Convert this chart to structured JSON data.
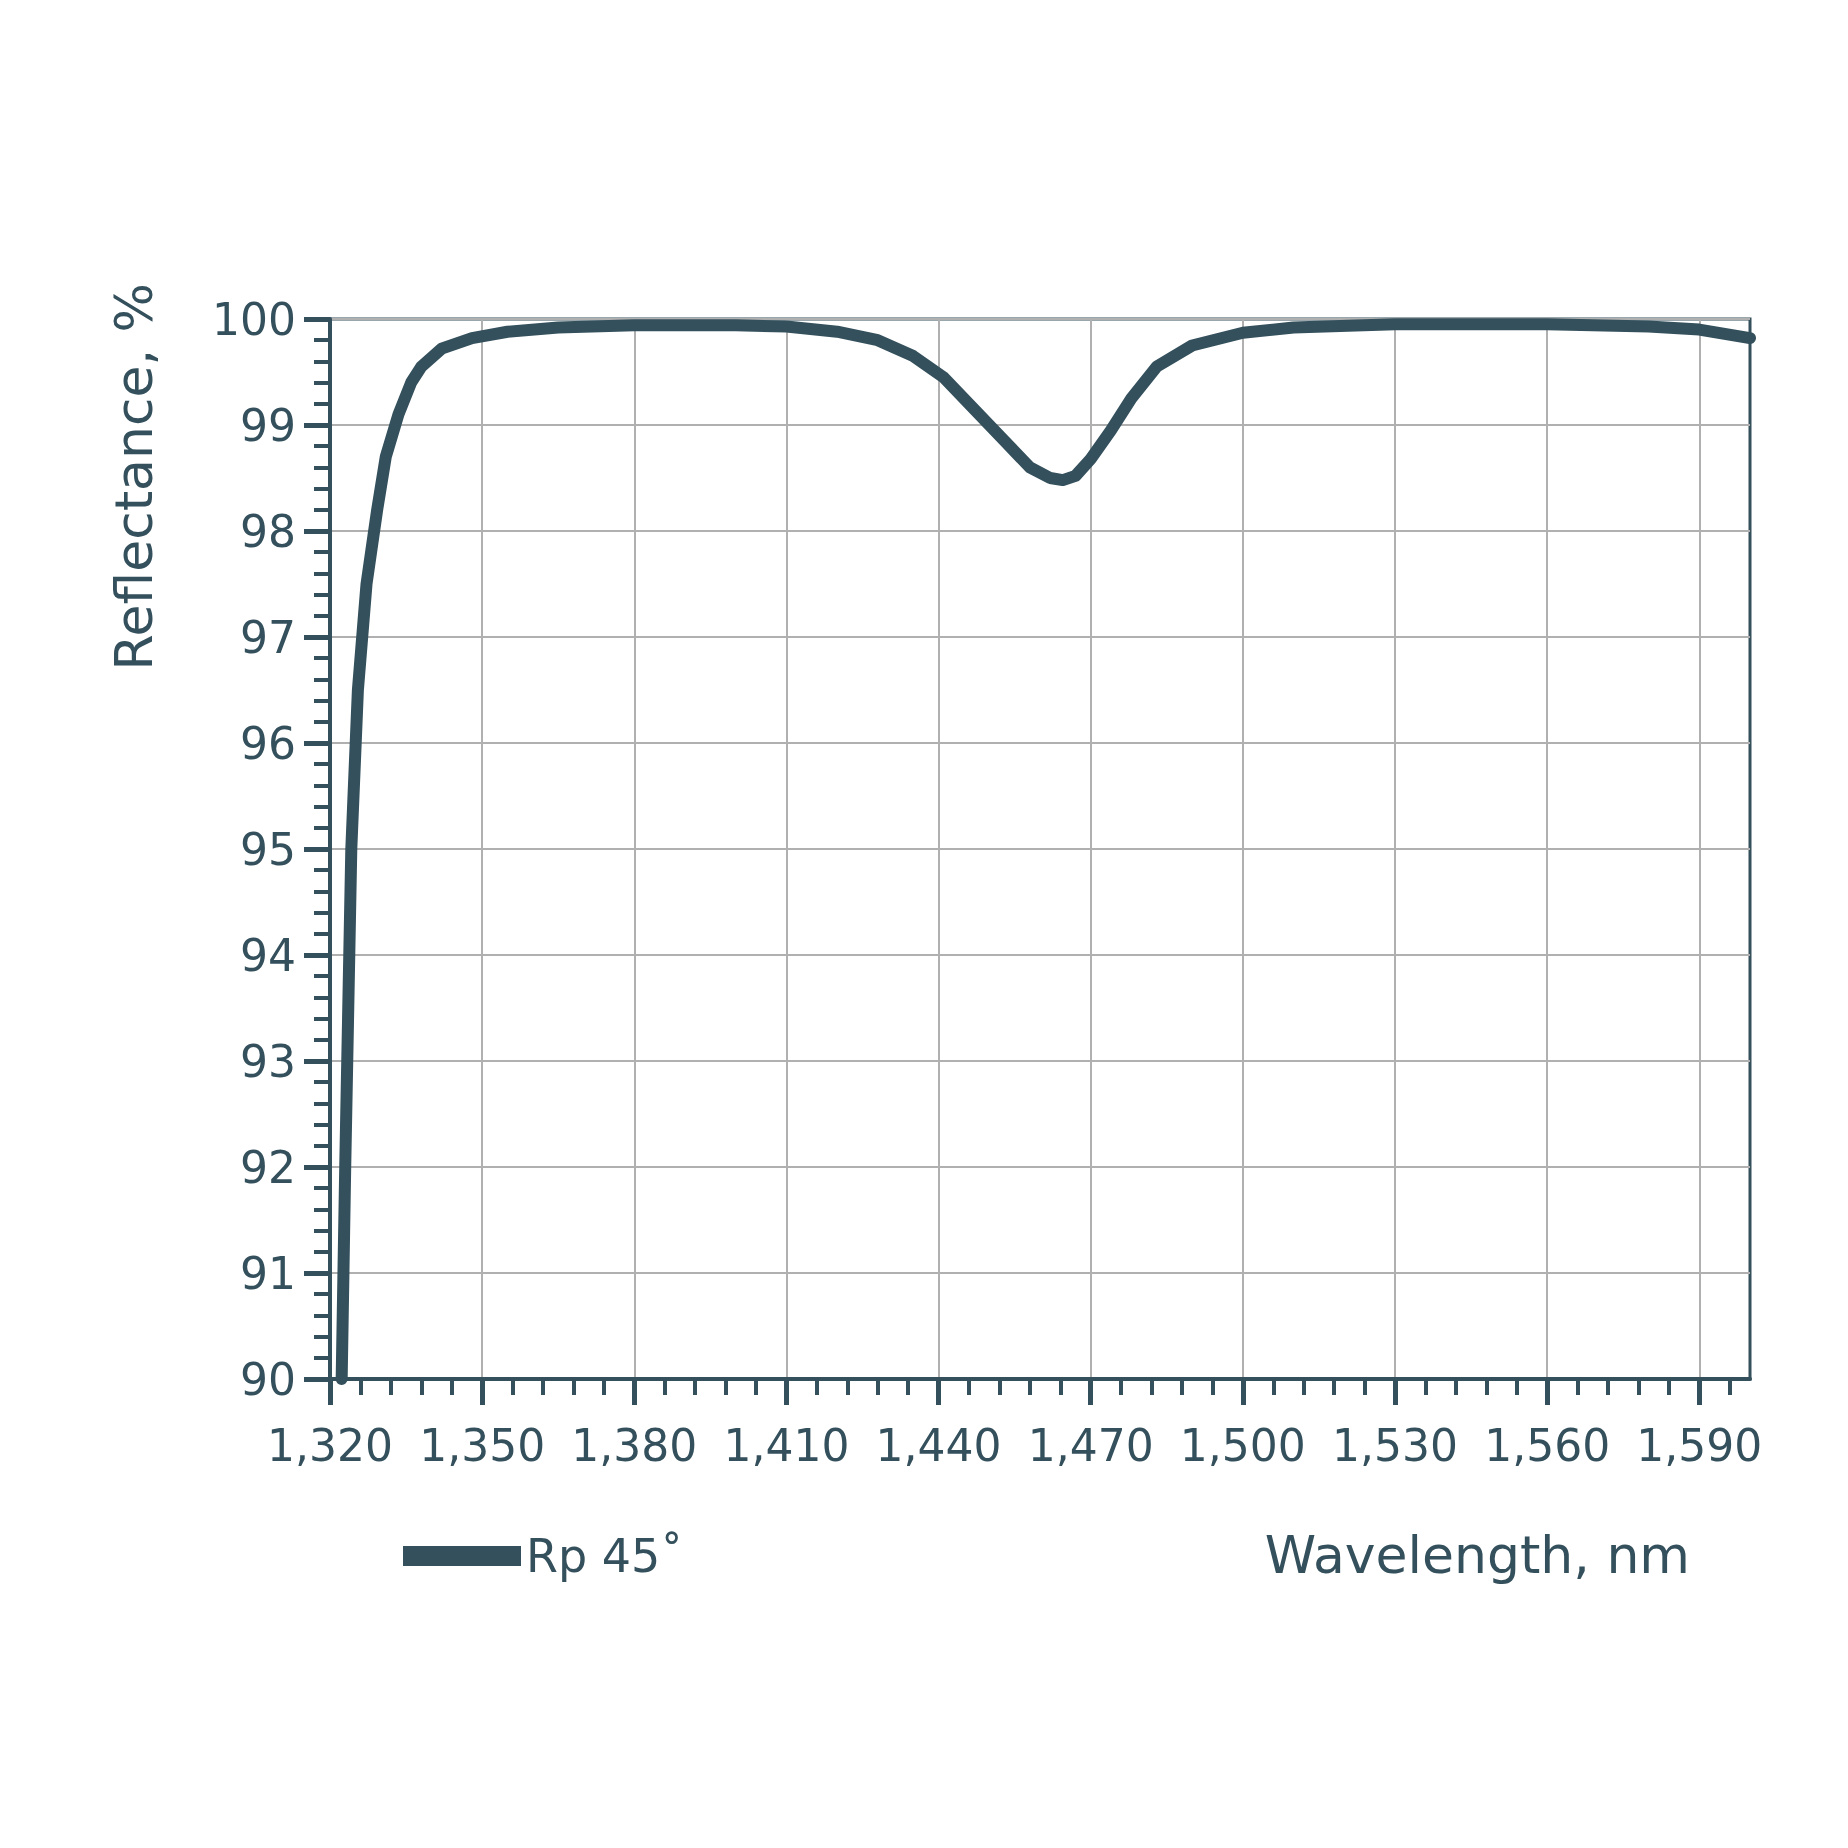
{
  "chart_data": {
    "type": "line",
    "xlabel": "Wavelength, nm",
    "ylabel": "Reflectance, %",
    "xlim": [
      1320,
      1600
    ],
    "ylim": [
      90,
      100
    ],
    "xticks": [
      {
        "value": 1320,
        "label": "1,320"
      },
      {
        "value": 1350,
        "label": "1,350"
      },
      {
        "value": 1380,
        "label": "1,380"
      },
      {
        "value": 1410,
        "label": "1,410"
      },
      {
        "value": 1440,
        "label": "1,440"
      },
      {
        "value": 1470,
        "label": "1,470"
      },
      {
        "value": 1500,
        "label": "1,500"
      },
      {
        "value": 1530,
        "label": "1,530"
      },
      {
        "value": 1560,
        "label": "1,560"
      },
      {
        "value": 1590,
        "label": "1,590"
      }
    ],
    "yticks": [
      90,
      91,
      92,
      93,
      94,
      95,
      96,
      97,
      98,
      99,
      100
    ],
    "grid": true,
    "legend": "bottom left",
    "line_style": "solid",
    "x": [
      1322.3,
      1323,
      1324.2,
      1325.5,
      1327.2,
      1329.3,
      1331,
      1333.5,
      1336,
      1338,
      1342,
      1348,
      1355,
      1365,
      1380,
      1400,
      1410,
      1420,
      1428,
      1435,
      1441,
      1447,
      1453,
      1458,
      1462,
      1464.5,
      1467,
      1470,
      1474,
      1478,
      1483,
      1490,
      1500,
      1510,
      1530,
      1560,
      1580,
      1590,
      1600
    ],
    "series": [
      {
        "name": "Rp 45˚",
        "color": "#34505c",
        "values": [
          90,
          92,
          95,
          96.5,
          97.5,
          98.2,
          98.7,
          99.1,
          99.4,
          99.55,
          99.72,
          99.82,
          99.88,
          99.92,
          99.94,
          99.94,
          99.93,
          99.88,
          99.8,
          99.65,
          99.45,
          99.15,
          98.85,
          98.6,
          98.5,
          98.48,
          98.52,
          98.68,
          98.95,
          99.25,
          99.55,
          99.75,
          99.87,
          99.92,
          99.95,
          99.95,
          99.93,
          99.9,
          99.82
        ]
      }
    ]
  }
}
